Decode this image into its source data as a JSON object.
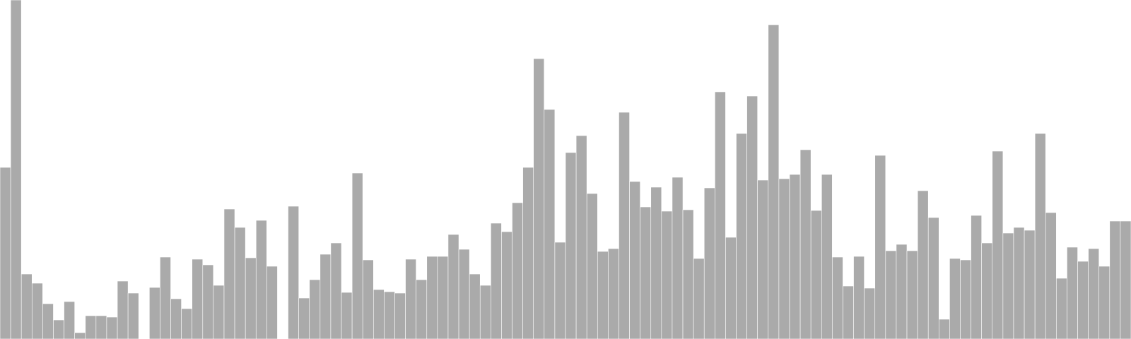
{
  "chart_data": {
    "type": "bar",
    "title": "",
    "xlabel": "",
    "ylabel": "",
    "grid": false,
    "legend": "none",
    "ylim": [
      0,
      480
    ],
    "bar_color": "#aaaaaa",
    "bar_edge_color": "#ffffff",
    "values": [
      243,
      480,
      92,
      79,
      50,
      27,
      53,
      9,
      33,
      33,
      31,
      82,
      65,
      null,
      73,
      116,
      57,
      43,
      113,
      105,
      76,
      184,
      158,
      115,
      168,
      103,
      null,
      188,
      58,
      84,
      120,
      136,
      66,
      235,
      112,
      70,
      67,
      65,
      113,
      84,
      117,
      117,
      148,
      127,
      92,
      76,
      164,
      152,
      193,
      243,
      397,
      325,
      137,
      264,
      288,
      206,
      124,
      128,
      321,
      223,
      187,
      215,
      181,
      229,
      183,
      114,
      214,
      350,
      144,
      291,
      344,
      225,
      445,
      227,
      233,
      268,
      182,
      233,
      116,
      75,
      117,
      72,
      260,
      125,
      134,
      125,
      210,
      172,
      28,
      114,
      112,
      175,
      136,
      266,
      150,
      158,
      154,
      291,
      179,
      86,
      130,
      110,
      128,
      103,
      167,
      167
    ]
  }
}
